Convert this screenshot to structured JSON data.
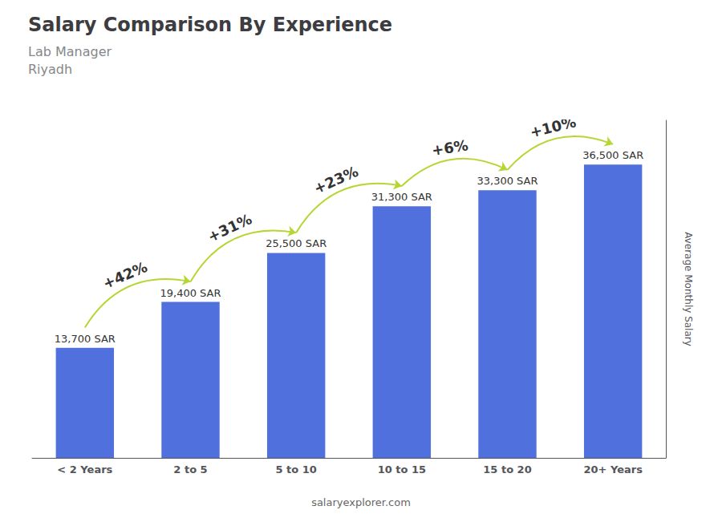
{
  "chart_data": {
    "type": "bar",
    "title": "Salary Comparison By Experience",
    "subtitle": [
      "Lab Manager",
      "Riyadh"
    ],
    "ylabel": "Average Monthly Salary",
    "categories": [
      "< 2 Years",
      "2 to 5",
      "5 to 10",
      "10 to 15",
      "15 to 20",
      "20+ Years"
    ],
    "values": [
      13700,
      19400,
      25500,
      31300,
      33300,
      36500
    ],
    "value_labels": [
      "13,700 SAR",
      "19,400 SAR",
      "25,500 SAR",
      "31,300 SAR",
      "33,300 SAR",
      "36,500 SAR"
    ],
    "data_labels": true,
    "ylim": [
      0,
      42000
    ],
    "tick_labels": "x",
    "grid": false,
    "annotations": [
      {
        "text": "+42%",
        "from": "< 2 Years",
        "to": "2 to 5"
      },
      {
        "text": "+31%",
        "from": "2 to 5",
        "to": "5 to 10"
      },
      {
        "text": "+23%",
        "from": "5 to 10",
        "to": "10 to 15"
      },
      {
        "text": "+6%",
        "from": "10 to 15",
        "to": "15 to 20"
      },
      {
        "text": "+10%",
        "from": "15 to 20",
        "to": "20+ Years"
      },
      {
        "text": "salaryexplorer.com"
      }
    ]
  }
}
